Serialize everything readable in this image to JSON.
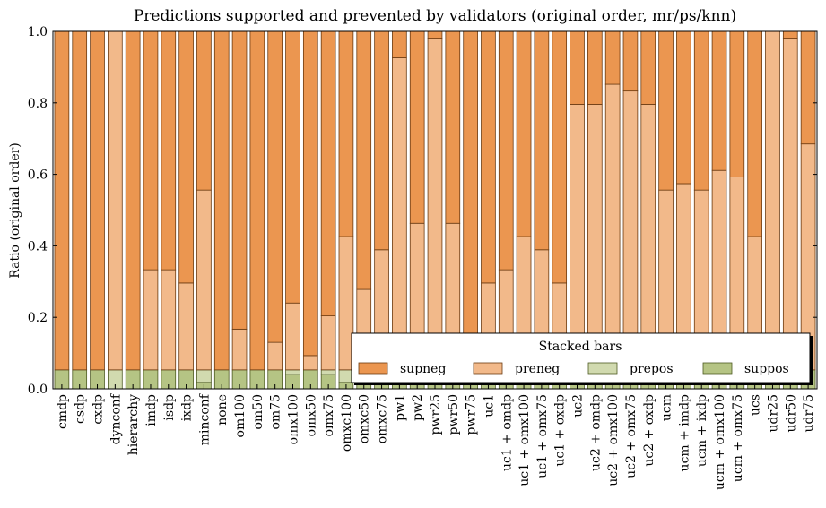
{
  "chart_data": {
    "type": "bar",
    "stacked": true,
    "title": "Predictions supported and prevented by validators (original order, mr/ps/knn)",
    "xlabel": "",
    "ylabel": "Ratio (original order)",
    "ylim": [
      0,
      1.0
    ],
    "yticks": [
      "0.0",
      "0.2",
      "0.4",
      "0.6",
      "0.8",
      "1.0"
    ],
    "grid": false,
    "legend": {
      "title": "Stacked bars",
      "placement": "bottom-right",
      "entries": [
        "supneg",
        "preneg",
        "prepos",
        "suppos"
      ]
    },
    "categories": [
      "cmdp",
      "csdp",
      "cxdp",
      "dynconf",
      "hierarchy",
      "imdp",
      "isdp",
      "ixdp",
      "minconf",
      "none",
      "om100",
      "om50",
      "om75",
      "omx100",
      "omx50",
      "omx75",
      "omxc100",
      "omxc50",
      "omxc75",
      "pw1",
      "pw2",
      "pwr25",
      "pwr50",
      "pwr75",
      "uc1",
      "uc1 + omdp",
      "uc1 + omx100",
      "uc1 + omx75",
      "uc1 + oxdp",
      "uc2",
      "uc2 + omdp",
      "uc2 + omx100",
      "uc2 + omx75",
      "uc2 + oxdp",
      "ucm",
      "ucm + imdp",
      "ucm + ixdp",
      "ucm + omx100",
      "ucm + omx75",
      "ucs",
      "udr25",
      "udr50",
      "udr75"
    ],
    "series": [
      {
        "name": "suppos",
        "color": "#b5c484",
        "edge": "#4d5a22",
        "values": [
          0.053,
          0.053,
          0.053,
          0,
          0.053,
          0.053,
          0.053,
          0.053,
          0.018,
          0.053,
          0.053,
          0.053,
          0.053,
          0.04,
          0.053,
          0.04,
          0.018,
          0.04,
          0.053,
          0.053,
          0.053,
          0.053,
          0.053,
          0.053,
          0.053,
          0.053,
          0.053,
          0.053,
          0.053,
          0.053,
          0.053,
          0.053,
          0.053,
          0.053,
          0.053,
          0.053,
          0.053,
          0.053,
          0.053,
          0.053,
          0.053,
          0.053,
          0.053
        ]
      },
      {
        "name": "prepos",
        "color": "#d1daaf",
        "edge": "#4d5a22",
        "values": [
          0,
          0,
          0,
          0.053,
          0,
          0,
          0,
          0,
          0.035,
          0,
          0,
          0,
          0,
          0.013,
          0,
          0.013,
          0.035,
          0.013,
          0,
          0,
          0,
          0,
          0,
          0,
          0,
          0,
          0,
          0,
          0,
          0,
          0,
          0,
          0,
          0,
          0,
          0,
          0,
          0,
          0,
          0,
          0,
          0,
          0
        ]
      },
      {
        "name": "preneg",
        "color": "#f2b98a",
        "edge": "#6b3a10",
        "values": [
          0,
          0,
          0,
          0.947,
          0,
          0.28,
          0.28,
          0.243,
          0.503,
          0,
          0.114,
          0,
          0.077,
          0.187,
          0.04,
          0.151,
          0.373,
          0.225,
          0.336,
          0.873,
          0.41,
          0.928,
          0.41,
          0,
          0.243,
          0.28,
          0.373,
          0.336,
          0.243,
          0.743,
          0.743,
          0.799,
          0.78,
          0.743,
          0.503,
          0.521,
          0.503,
          0.558,
          0.54,
          0.373,
          0.947,
          0.928,
          0.632
        ]
      },
      {
        "name": "supneg",
        "color": "#eb9650",
        "edge": "#6b3a10",
        "values": [
          0.947,
          0.947,
          0.947,
          0,
          0.947,
          0.667,
          0.667,
          0.704,
          0.444,
          0.947,
          0.833,
          0.947,
          0.87,
          0.76,
          0.907,
          0.796,
          0.574,
          0.722,
          0.611,
          0.074,
          0.537,
          0.019,
          0.537,
          0.947,
          0.704,
          0.667,
          0.574,
          0.611,
          0.704,
          0.204,
          0.204,
          0.148,
          0.167,
          0.204,
          0.444,
          0.426,
          0.444,
          0.389,
          0.407,
          0.574,
          0,
          0.019,
          0.315
        ]
      }
    ]
  }
}
